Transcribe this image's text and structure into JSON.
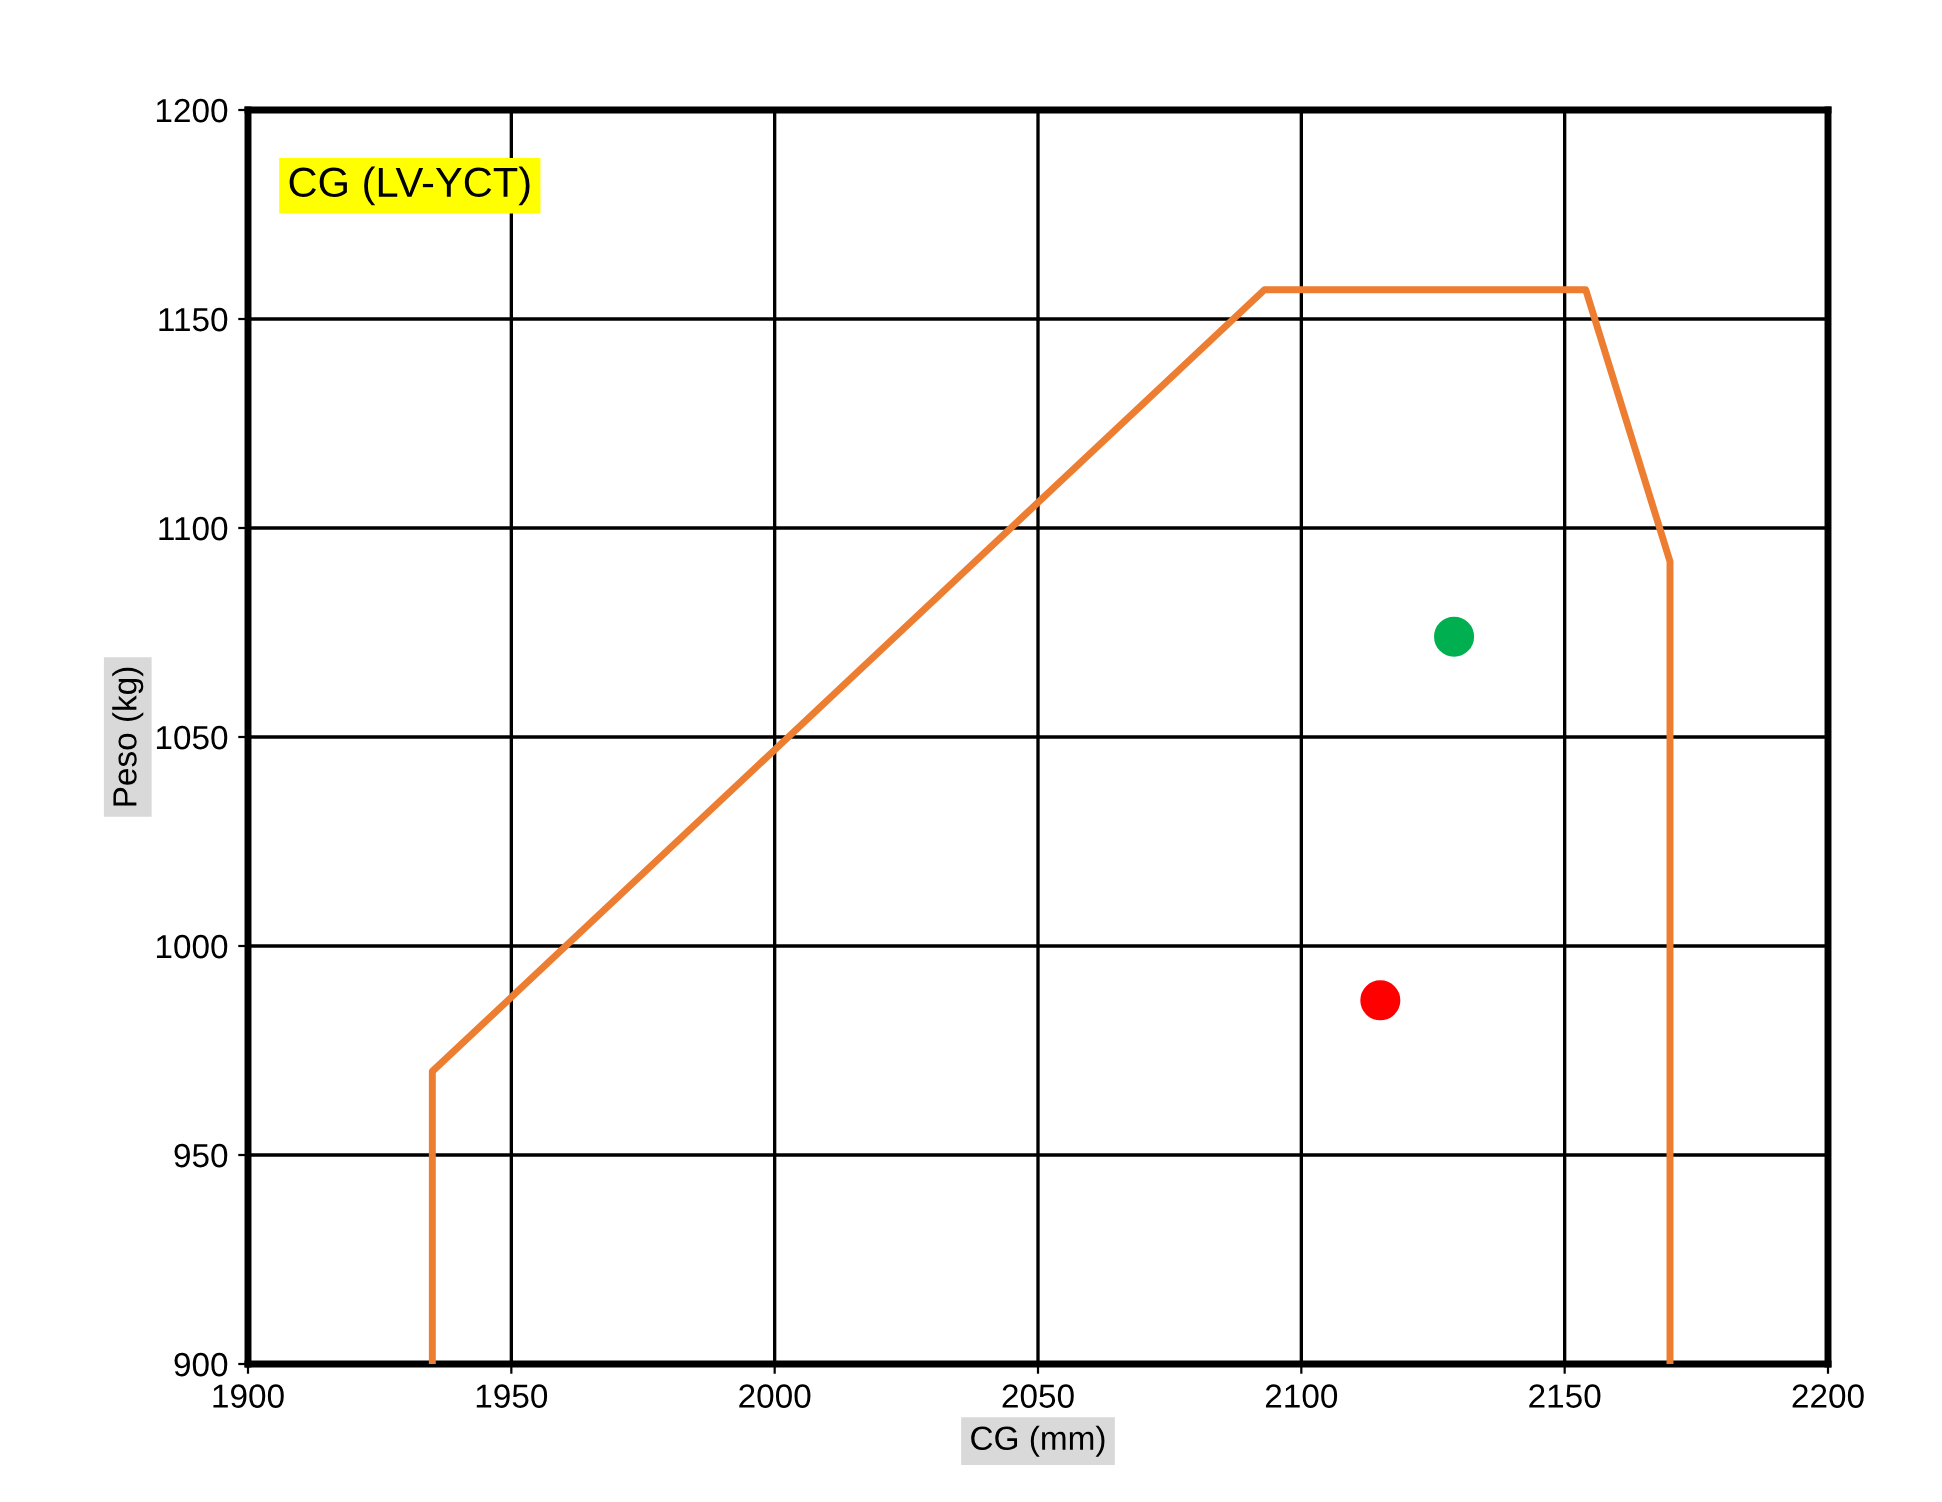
{
  "chart_data": {
    "type": "line",
    "title": "CG (LV-YCT)",
    "xlabel": "CG (mm)",
    "ylabel": "Peso (kg)",
    "series": [
      {
        "marker": "none",
        "color": "#ed7d31",
        "x": [
          1935,
          1935,
          2093,
          2154,
          2170,
          2170
        ],
        "values": [
          900,
          970,
          1157,
          1157,
          1092,
          900
        ]
      },
      {
        "type": "scatter",
        "marker": "circle",
        "color": "#00b050",
        "x": [
          2129
        ],
        "values": [
          1074
        ]
      },
      {
        "type": "scatter",
        "marker": "circle",
        "color": "#ff0000",
        "x": [
          2115
        ],
        "values": [
          987
        ]
      }
    ],
    "xlim": [
      1900,
      2200
    ],
    "xticks": [
      1900,
      1950,
      2000,
      2050,
      2100,
      2150,
      2200
    ],
    "ylim": [
      900,
      1200
    ],
    "yticks": [
      900,
      950,
      1000,
      1050,
      1100,
      1150,
      1200
    ],
    "grid": true,
    "line_style": "solid"
  }
}
